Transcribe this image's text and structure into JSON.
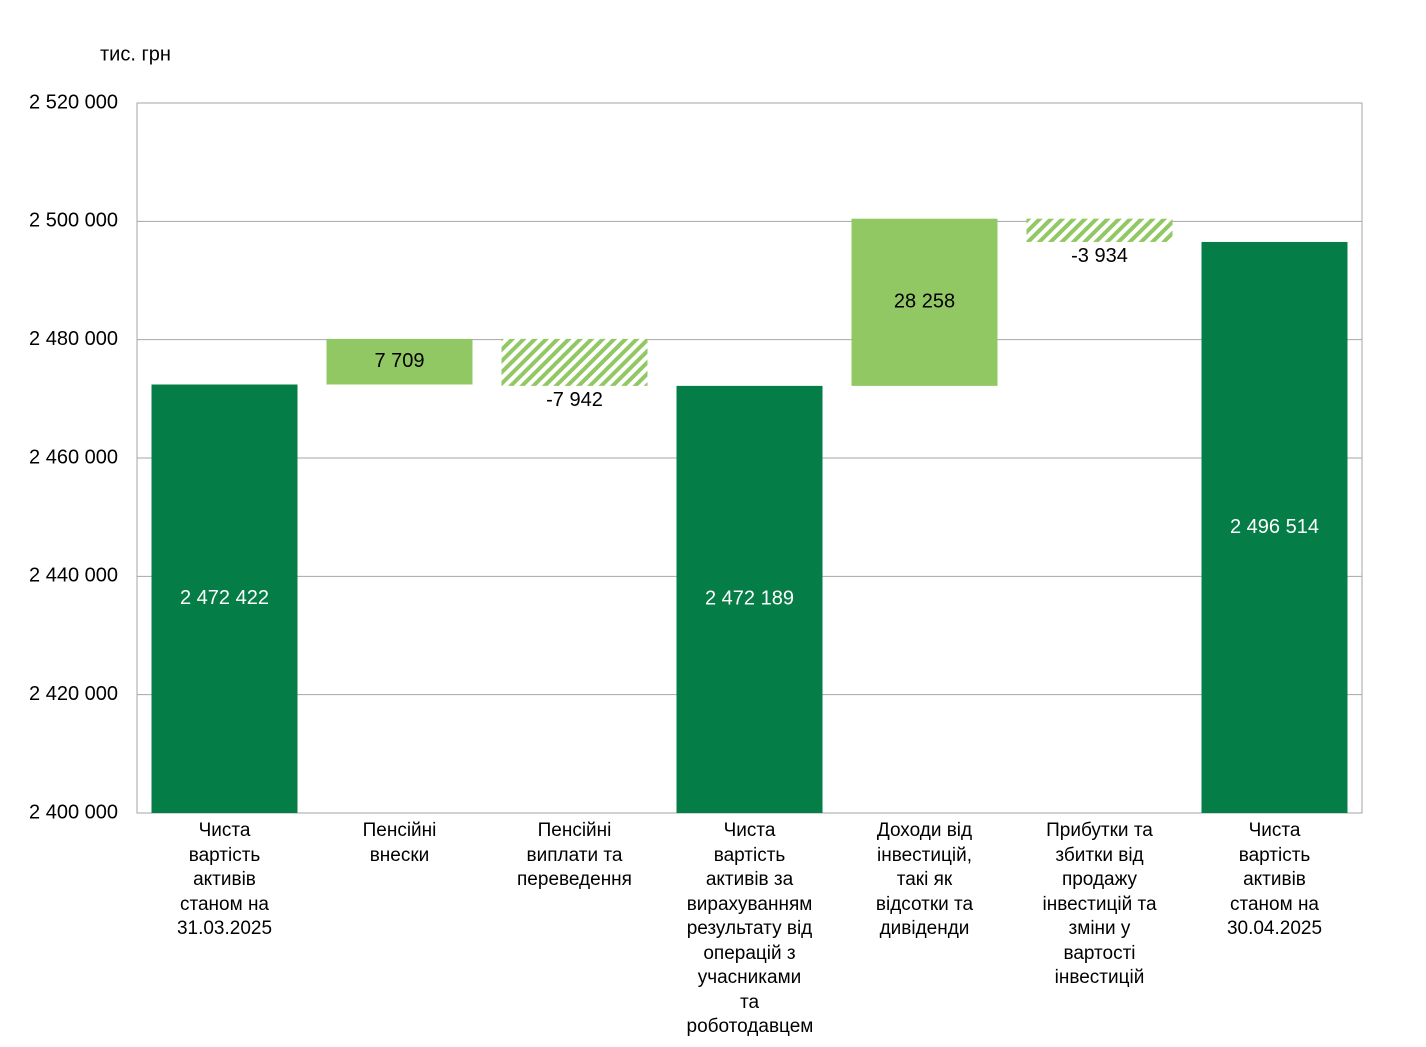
{
  "chart_data": {
    "type": "waterfall",
    "y_label": "тис. грн",
    "categories": [
      "Чиста вартість активів станом на 31.03.2025",
      "Пенсійні внески",
      "Пенсійні виплати та переведення",
      "Чиста вартість активів за вирахуванням результату від операцій з учасниками та роботодавцем",
      "Доходи від інвестицій, такі як відсотки та дивіденди",
      "Прибутки та збитки від продажу інвестицій та зміни у вартості інвестицій",
      "Чиста вартість активів станом на 30.04.2025"
    ],
    "measure": [
      "absolute",
      "relative",
      "relative",
      "absolute",
      "relative",
      "relative",
      "absolute"
    ],
    "values": [
      2472422,
      7709,
      -7942,
      2472189,
      28258,
      -3934,
      2496514
    ],
    "value_labels": [
      "2 472 422",
      "7 709",
      "-7 942",
      "2 472 189",
      "28 258",
      "-3 934",
      "2 496 514"
    ],
    "total_color": "#057d46",
    "increase_color": "#92c864",
    "decrease_color": "#92c864",
    "decrease_hatched": true,
    "ylim": [
      2400000,
      2520000
    ],
    "yticks": [
      {
        "value": 2400000,
        "label": "2 400 000"
      },
      {
        "value": 2420000,
        "label": "2 420 000"
      },
      {
        "value": 2440000,
        "label": "2 440 000"
      },
      {
        "value": 2460000,
        "label": "2 460 000"
      },
      {
        "value": 2480000,
        "label": "2 480 000"
      },
      {
        "value": 2500000,
        "label": "2 500 000"
      },
      {
        "value": 2520000,
        "label": "2 520 000"
      }
    ],
    "grid": true
  }
}
